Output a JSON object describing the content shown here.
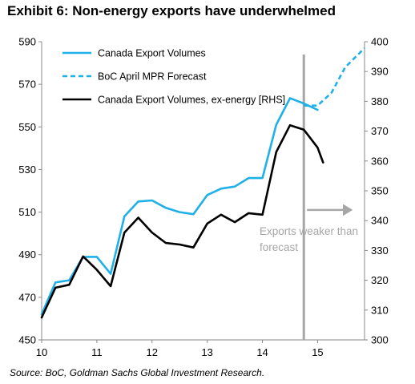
{
  "chart_data": {
    "type": "line",
    "title": "Exhibit 6: Non-energy exports have underwhelmed",
    "source": "Source: BoC, Goldman Sachs Global Investment Research.",
    "xlim": [
      10,
      15.85
    ],
    "x_ticks": [
      "10",
      "11",
      "12",
      "13",
      "14",
      "15"
    ],
    "ylim_left": [
      450,
      590
    ],
    "ylim_right": [
      300,
      400
    ],
    "y_ticks_left": [
      "450",
      "470",
      "490",
      "510",
      "530",
      "550",
      "570",
      "590"
    ],
    "y_ticks_right": [
      "300",
      "310",
      "320",
      "330",
      "340",
      "350",
      "360",
      "370",
      "380",
      "390",
      "400"
    ],
    "legend_position": "top-left",
    "series": [
      {
        "name": "Canada Export Volumes",
        "axis": "left",
        "color": "#1fb0e8",
        "style": "solid",
        "points": [
          [
            10.0,
            462
          ],
          [
            10.25,
            477
          ],
          [
            10.5,
            478
          ],
          [
            10.75,
            489
          ],
          [
            11.0,
            489
          ],
          [
            11.25,
            481
          ],
          [
            11.5,
            508
          ],
          [
            11.75,
            515
          ],
          [
            12.0,
            515.5
          ],
          [
            12.25,
            512
          ],
          [
            12.5,
            510
          ],
          [
            12.75,
            509
          ],
          [
            13.0,
            518
          ],
          [
            13.25,
            521
          ],
          [
            13.5,
            522
          ],
          [
            13.75,
            526
          ],
          [
            14.0,
            526
          ],
          [
            14.25,
            551
          ],
          [
            14.5,
            563.5
          ],
          [
            14.75,
            561
          ],
          [
            15.0,
            558
          ]
        ]
      },
      {
        "name": "BoC April MPR Forecast",
        "axis": "left",
        "color": "#1fb0e8",
        "style": "dashed",
        "points": [
          [
            14.75,
            560
          ],
          [
            15.0,
            560
          ],
          [
            15.25,
            566
          ],
          [
            15.5,
            578
          ],
          [
            15.85,
            587
          ]
        ]
      },
      {
        "name": "Canada Export Volumes, ex-energy [RHS]",
        "axis": "right",
        "color": "#000000",
        "style": "solid",
        "points": [
          [
            10.0,
            307.5
          ],
          [
            10.25,
            317.5
          ],
          [
            10.5,
            318.5
          ],
          [
            10.75,
            328
          ],
          [
            11.0,
            323.5
          ],
          [
            11.25,
            318
          ],
          [
            11.5,
            336
          ],
          [
            11.75,
            341
          ],
          [
            12.0,
            336
          ],
          [
            12.25,
            332.5
          ],
          [
            12.5,
            332
          ],
          [
            12.75,
            331
          ],
          [
            13.0,
            339
          ],
          [
            13.25,
            342
          ],
          [
            13.5,
            339.5
          ],
          [
            13.75,
            342.5
          ],
          [
            14.0,
            342
          ],
          [
            14.25,
            363
          ],
          [
            14.5,
            372
          ],
          [
            14.75,
            370.5
          ],
          [
            15.0,
            364.5
          ],
          [
            15.1,
            359.5
          ]
        ]
      }
    ],
    "annotation": {
      "text_line1": "Exports weaker than",
      "text_line2": "forecast",
      "vline_x": 14.75,
      "arrow_from_x": 14.75,
      "arrow_to_x": 15.6,
      "arrow_y_left": 511
    }
  }
}
